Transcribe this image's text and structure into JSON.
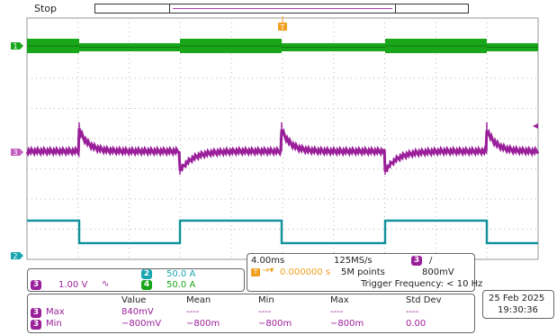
{
  "status": "Stop",
  "trigger": {
    "marker": "T"
  },
  "channels": {
    "ch1": {
      "number": "1",
      "color": "#1aa61a"
    },
    "ch2": {
      "number": "2",
      "color": "#1aa6b0",
      "scale": "50.0 A"
    },
    "ch3": {
      "number": "3",
      "color": "#9a1f9a",
      "scale": "1.00 V",
      "coupling": "∿"
    },
    "ch4": {
      "number": "4",
      "color": "#1aa61a",
      "scale": "50.0 A"
    }
  },
  "acquisition": {
    "timebase": "4.00ms",
    "sample_rate": "125MS/s",
    "record_length": "5M points",
    "trigger_pos": "0.000000 s",
    "trigger_channel": "3",
    "trigger_slope": "/",
    "trigger_level": "800mV",
    "trigger_frequency": "Trigger Frequency: < 10 Hz"
  },
  "measurements": {
    "headers": [
      "Value",
      "Mean",
      "Min",
      "Max",
      "Std Dev"
    ],
    "rows": [
      {
        "channel": "3",
        "label": "Max",
        "values": [
          "840mV",
          "----",
          "----",
          "----",
          "----"
        ]
      },
      {
        "channel": "3",
        "label": "Min",
        "values": [
          "−800mV",
          "−800m",
          "−800m",
          "−800m",
          "0.00"
        ]
      }
    ]
  },
  "datetime": {
    "date": "25 Feb  2025",
    "time": "19:30:36"
  }
}
